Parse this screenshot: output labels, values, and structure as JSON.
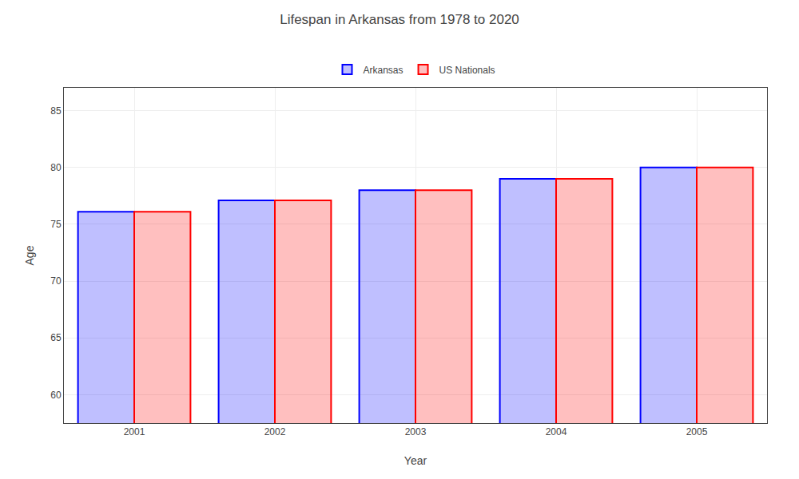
{
  "chart_data": {
    "type": "bar",
    "title": "Lifespan in Arkansas from 1978 to 2020",
    "xlabel": "Year",
    "ylabel": "Age",
    "categories": [
      "2001",
      "2002",
      "2003",
      "2004",
      "2005"
    ],
    "series": [
      {
        "name": "Arkansas",
        "color": "#0000ff",
        "values": [
          76.1,
          77.1,
          78.0,
          79.0,
          80.0
        ]
      },
      {
        "name": "US Nationals",
        "color": "#ff0000",
        "values": [
          76.1,
          77.1,
          78.0,
          79.0,
          80.0
        ]
      }
    ],
    "ylim": [
      57.5,
      87
    ],
    "yticks": [
      60,
      65,
      70,
      75,
      80,
      85
    ],
    "grid": true,
    "legend": "top"
  }
}
